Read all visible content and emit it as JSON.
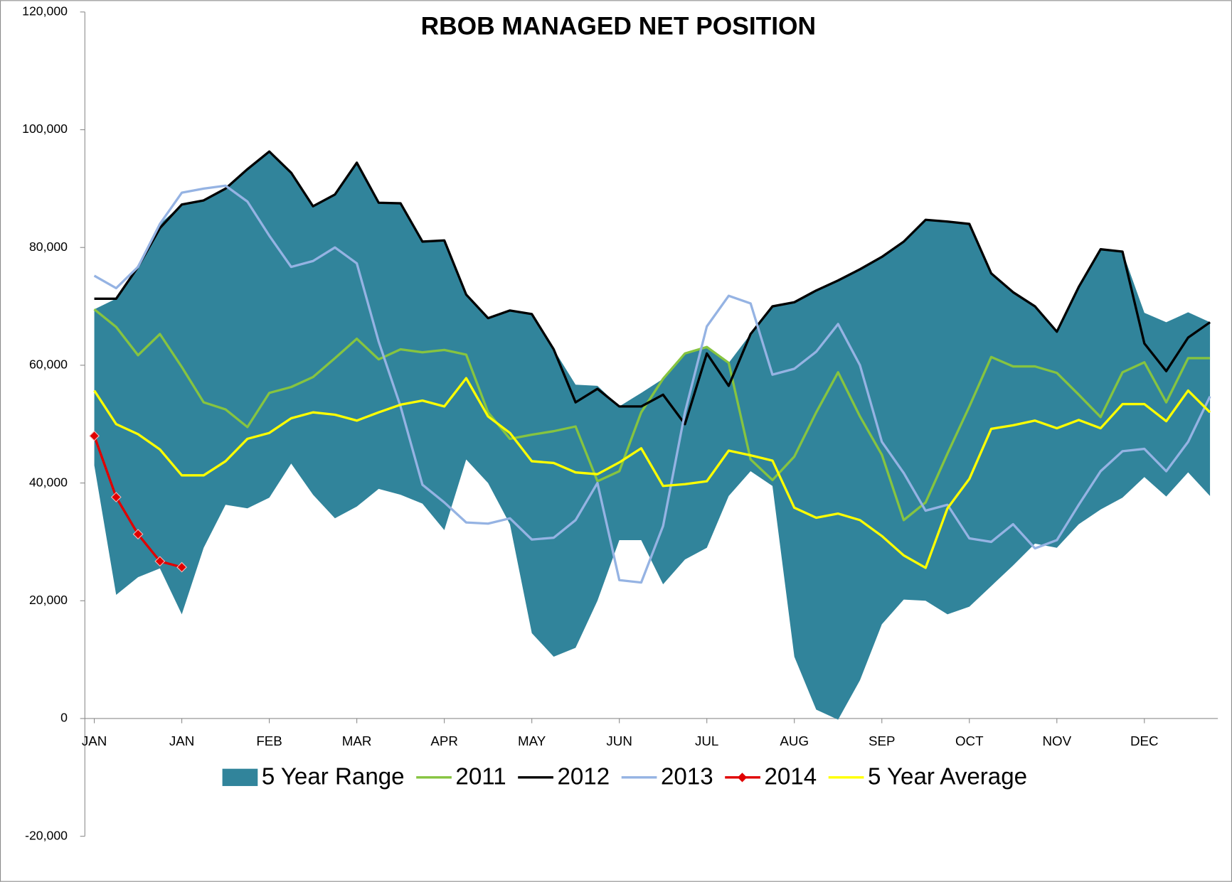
{
  "chart_data": {
    "type": "line",
    "title": "RBOB MANAGED NET POSITION",
    "categories": [
      "JAN",
      null,
      null,
      null,
      "JAN",
      null,
      null,
      null,
      "FEB",
      null,
      null,
      null,
      "MAR",
      null,
      null,
      null,
      "APR",
      null,
      null,
      null,
      "MAY",
      null,
      null,
      null,
      "JUN",
      null,
      null,
      null,
      "JUL",
      null,
      null,
      null,
      "AUG",
      null,
      null,
      null,
      "SEP",
      null,
      null,
      null,
      "OCT",
      null,
      null,
      null,
      "NOV",
      null,
      null,
      null,
      "DEC",
      null,
      null,
      null
    ],
    "ylim": [
      -20000,
      120000
    ],
    "yticks": [
      {
        "value": -20000,
        "label": "-20,000"
      },
      0,
      {
        "value": 20000,
        "label": "20,000"
      },
      {
        "value": 40000,
        "label": "40,000"
      },
      {
        "value": 60000,
        "label": "60,000"
      },
      {
        "value": 80000,
        "label": "80,000"
      },
      {
        "value": 100000,
        "label": "100,000"
      },
      {
        "value": 120000,
        "label": "120,000"
      }
    ],
    "legend": "bottom",
    "series": [
      {
        "name": "5 Year Range",
        "type": "range",
        "color": "#31849b",
        "low": [
          43000,
          21000,
          24000,
          25500,
          17700,
          29000,
          36300,
          35700,
          37500,
          43300,
          38000,
          34000,
          36000,
          39000,
          38000,
          36500,
          32000,
          44000,
          40000,
          33000,
          14500,
          10500,
          12000,
          20000,
          30300,
          30300,
          22800,
          27000,
          29000,
          37800,
          42000,
          39500,
          10500,
          1500,
          -200,
          6500,
          16000,
          20200,
          20000,
          17700,
          19000,
          22500,
          26000,
          29700,
          29000,
          33000,
          35500,
          37500,
          41000,
          37700,
          41800,
          37800
        ],
        "high": [
          69500,
          71300,
          76700,
          84000,
          87300,
          88000,
          90000,
          93300,
          96300,
          92700,
          87000,
          89000,
          94400,
          87600,
          87500,
          81000,
          81200,
          72000,
          68000,
          69300,
          68700,
          62700,
          56700,
          56500,
          53000,
          55300,
          57700,
          62000,
          63100,
          60400,
          65300,
          70000,
          70700,
          72700,
          74400,
          76300,
          78400,
          81000,
          84700,
          84400,
          84000,
          75600,
          72400,
          70000,
          65700,
          73300,
          79700,
          79300,
          68900,
          67300,
          69000,
          67300
        ]
      },
      {
        "name": "2011",
        "color": "#86c440",
        "values": [
          69500,
          66500,
          61700,
          65300,
          59700,
          53700,
          52500,
          49500,
          55300,
          56300,
          58000,
          61200,
          64500,
          61000,
          62700,
          62200,
          62600,
          61800,
          52000,
          47500,
          48200,
          48800,
          49600,
          40300,
          42000,
          52000,
          57700,
          62000,
          63100,
          60400,
          44000,
          40500,
          44500,
          52000,
          58800,
          51300,
          44800,
          33700,
          36700,
          45000,
          53000,
          61400,
          59800,
          59800,
          58700,
          55000,
          51200,
          58800,
          60500,
          53700,
          61200,
          61200
        ]
      },
      {
        "name": "2012",
        "color": "#000000",
        "values": [
          71300,
          71300,
          76700,
          83300,
          87300,
          88000,
          90000,
          93300,
          96300,
          92700,
          87000,
          89000,
          94400,
          87600,
          87500,
          81000,
          81200,
          72000,
          68000,
          69300,
          68700,
          62700,
          53700,
          56000,
          53000,
          53000,
          55000,
          50000,
          62000,
          56500,
          65300,
          70000,
          70700,
          72700,
          74400,
          76300,
          78400,
          81000,
          84700,
          84400,
          84000,
          75600,
          72400,
          70000,
          65700,
          73300,
          79700,
          79300,
          63700,
          59000,
          64700,
          67300
        ]
      },
      {
        "name": "2013",
        "color": "#95b3e3",
        "values": [
          75200,
          73100,
          76700,
          84000,
          89300,
          90000,
          90500,
          87800,
          82000,
          76700,
          77700,
          80000,
          77300,
          64000,
          53000,
          39700,
          36700,
          33300,
          33100,
          34000,
          30400,
          30700,
          33700,
          40000,
          23500,
          23100,
          32700,
          52000,
          66600,
          71800,
          70500,
          58400,
          59400,
          62300,
          67000,
          60000,
          47000,
          41700,
          35300,
          36300,
          30600,
          30000,
          33000,
          28900,
          30300,
          36300,
          42000,
          45400,
          45800,
          42000,
          47000,
          54700
        ]
      },
      {
        "name": "2014",
        "color": "#e00000",
        "marker": "diamond",
        "values": [
          48000,
          37600,
          31300,
          26700,
          25700,
          null,
          null,
          null,
          null,
          null,
          null,
          null,
          null,
          null,
          null,
          null,
          null,
          null,
          null,
          null,
          null,
          null,
          null,
          null,
          null,
          null,
          null,
          null,
          null,
          null,
          null,
          null,
          null,
          null,
          null,
          null,
          null,
          null,
          null,
          null,
          null,
          null,
          null,
          null,
          null,
          null,
          null,
          null,
          null,
          null,
          null,
          null
        ]
      },
      {
        "name": "5 Year Average",
        "color": "#ffff00",
        "values": [
          55700,
          50000,
          48300,
          45700,
          41300,
          41300,
          43700,
          47500,
          48500,
          51000,
          52000,
          51600,
          50600,
          52000,
          53300,
          54000,
          53000,
          57800,
          51300,
          48500,
          43700,
          43400,
          41800,
          41500,
          43500,
          45900,
          39500,
          39800,
          40300,
          45500,
          44700,
          43800,
          35800,
          34100,
          34800,
          33700,
          31000,
          27700,
          25600,
          35700,
          40700,
          49200,
          49800,
          50600,
          49300,
          50700,
          49300,
          53400,
          53400,
          50500,
          55700,
          52000
        ]
      }
    ]
  }
}
